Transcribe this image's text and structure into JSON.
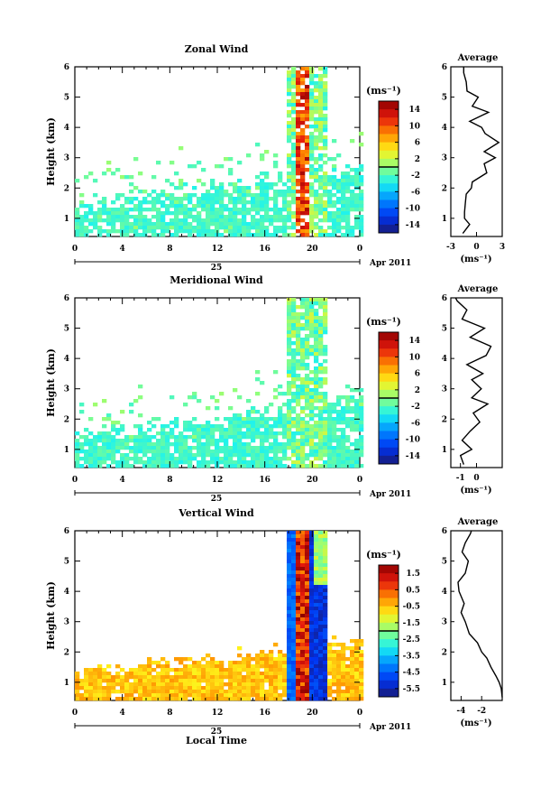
{
  "chart_data": [
    {
      "type": "heatmap",
      "title": "Zonal Wind",
      "ylabel": "Height (km)",
      "y_ticks": [
        "1",
        "2",
        "3",
        "4",
        "5",
        "6"
      ],
      "ylim": [
        0.4,
        6
      ],
      "x_ticks": [
        "0",
        "4",
        "8",
        "12",
        "16",
        "20",
        "0"
      ],
      "xlim": [
        0,
        24
      ],
      "date_label": "25",
      "month_label": "Apr 2011",
      "colorbar": {
        "unit": "(ms⁻¹)",
        "labels": [
          "14",
          "10",
          "6",
          "2",
          "-2",
          "-6",
          "-10",
          "-14"
        ],
        "range": [
          -16,
          16
        ]
      },
      "profile": {
        "title": "Average",
        "xlabel": "(ms⁻¹)",
        "x_ticks": [
          "-3",
          "0",
          "3"
        ],
        "xlim": [
          -3,
          3
        ],
        "heights": [
          0.5,
          0.8,
          1.0,
          1.2,
          1.5,
          1.8,
          2.0,
          2.2,
          2.5,
          2.8,
          3.0,
          3.2,
          3.5,
          3.8,
          4.0,
          4.2,
          4.5,
          4.7,
          5.0,
          5.2,
          5.5,
          5.8,
          6.0
        ],
        "values": [
          -1.6,
          -0.8,
          -1.4,
          -1.4,
          -1.3,
          -1.2,
          -0.6,
          -0.5,
          1.2,
          0.9,
          2.2,
          0.9,
          2.6,
          1.0,
          0.6,
          -0.8,
          1.4,
          -0.5,
          0.2,
          -1.1,
          -1.2,
          -1.5,
          -1.5
        ]
      },
      "colormap": "jet"
    },
    {
      "type": "heatmap",
      "title": "Meridional Wind",
      "ylabel": "Height (km)",
      "y_ticks": [
        "1",
        "2",
        "3",
        "4",
        "5",
        "6"
      ],
      "ylim": [
        0.4,
        6
      ],
      "x_ticks": [
        "0",
        "4",
        "8",
        "12",
        "16",
        "20",
        "0"
      ],
      "xlim": [
        0,
        24
      ],
      "date_label": "25",
      "month_label": "Apr 2011",
      "colorbar": {
        "unit": "(ms⁻¹)",
        "labels": [
          "14",
          "10",
          "6",
          "2",
          "-2",
          "-6",
          "-10",
          "-14"
        ],
        "range": [
          -16,
          16
        ]
      },
      "profile": {
        "title": "Average",
        "xlabel": "(ms⁻¹)",
        "x_ticks": [
          "-1",
          "0"
        ],
        "xlim": [
          -1.6,
          1.6
        ],
        "heights": [
          0.5,
          0.8,
          1.0,
          1.3,
          1.6,
          1.9,
          2.2,
          2.5,
          2.7,
          3.0,
          3.3,
          3.5,
          3.8,
          4.1,
          4.4,
          4.7,
          5.0,
          5.3,
          5.6,
          5.9,
          6.0
        ],
        "values": [
          -0.8,
          -1.0,
          -0.3,
          -0.9,
          -0.4,
          0.2,
          -0.2,
          0.7,
          -0.3,
          0.3,
          -0.3,
          0.4,
          -0.6,
          0.6,
          0.9,
          -0.4,
          0.5,
          -0.9,
          -0.6,
          -1.2,
          -1.3
        ]
      },
      "colormap": "jet"
    },
    {
      "type": "heatmap",
      "title": "Vertical Wind",
      "xlabel": "Local Time",
      "ylabel": "Height (km)",
      "y_ticks": [
        "1",
        "2",
        "3",
        "4",
        "5",
        "6"
      ],
      "ylim": [
        0.4,
        6
      ],
      "x_ticks": [
        "0",
        "4",
        "8",
        "12",
        "16",
        "20",
        "0"
      ],
      "xlim": [
        0,
        24
      ],
      "date_label": "25",
      "month_label": "Apr 2011",
      "colorbar": {
        "unit": "(ms⁻¹)",
        "labels": [
          "1.5",
          "0.5",
          "-0.5",
          "-1.5",
          "-2.5",
          "-3.5",
          "-4.5",
          "-5.5"
        ],
        "range": [
          -6,
          2
        ]
      },
      "profile": {
        "title": "Average",
        "xlabel": "(ms⁻¹)",
        "x_ticks": [
          "-4",
          "-2"
        ],
        "xlim": [
          -5,
          0
        ],
        "heights": [
          0.5,
          0.8,
          1.0,
          1.2,
          1.5,
          1.8,
          2.0,
          2.3,
          2.6,
          3.0,
          3.3,
          3.6,
          4.0,
          4.3,
          4.6,
          5.0,
          5.3,
          5.6,
          5.9,
          6.0
        ],
        "values": [
          0.0,
          -0.1,
          -0.3,
          -0.6,
          -1.1,
          -1.5,
          -2.0,
          -2.4,
          -3.2,
          -3.6,
          -4.0,
          -3.7,
          -4.2,
          -4.3,
          -3.6,
          -3.3,
          -3.9,
          -3.6,
          -3.1,
          -3.0
        ]
      },
      "colormap": "jet"
    }
  ]
}
